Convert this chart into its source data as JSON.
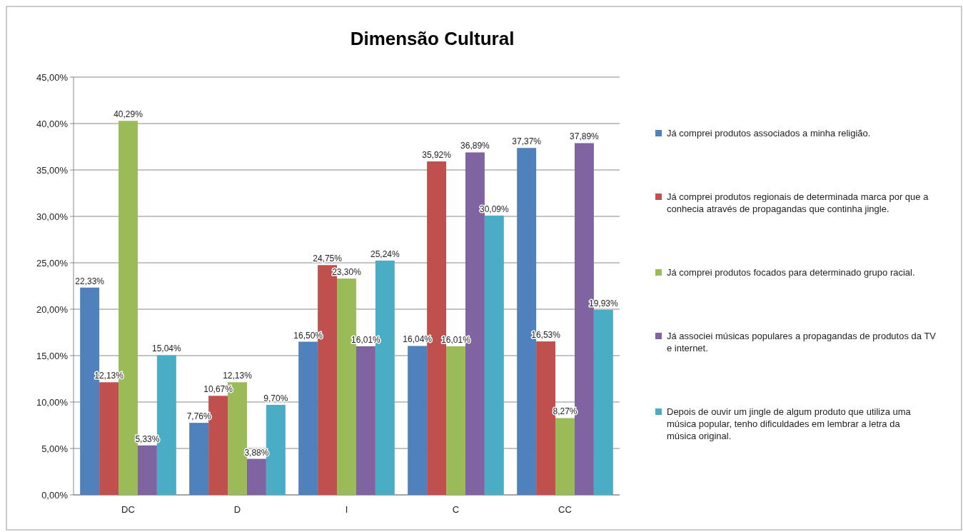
{
  "chart_data": {
    "type": "bar",
    "title": "Dimensão Cultural",
    "categories": [
      "DC",
      "D",
      "I",
      "C",
      "CC"
    ],
    "series": [
      {
        "name": "Já comprei produtos associados a minha religião.",
        "color": "#4f81bd",
        "values": [
          22.33,
          7.76,
          16.5,
          16.04,
          37.37
        ],
        "value_labels": [
          "22,33%",
          "7,76%",
          "16,50%",
          "16,04%",
          "37,37%"
        ]
      },
      {
        "name": "Já comprei produtos regionais de determinada marca por que a conhecia através de propagandas que continha jingle.",
        "color": "#c0504d",
        "values": [
          12.13,
          10.67,
          24.75,
          35.92,
          16.53
        ],
        "value_labels": [
          "12,13%",
          "10,67%",
          "24,75%",
          "35,92%",
          "16,53%"
        ]
      },
      {
        "name": "Já comprei produtos focados para determinado grupo racial.",
        "color": "#9bbb59",
        "values": [
          40.29,
          12.13,
          23.3,
          16.01,
          8.27
        ],
        "value_labels": [
          "40,29%",
          "12,13%",
          "23,30%",
          "16,01%",
          "8,27%"
        ]
      },
      {
        "name": "Já associei músicas populares a propagandas de produtos da TV e internet.",
        "color": "#8064a2",
        "values": [
          5.33,
          3.88,
          16.01,
          36.89,
          37.89
        ],
        "value_labels": [
          "5,33%",
          "3,88%",
          "16,01%",
          "36,89%",
          "37,89%"
        ]
      },
      {
        "name": "Depois de ouvir um jingle de algum produto que utiliza uma música popular, tenho dificuldades em lembrar a letra da música original.",
        "color": "#4bacc6",
        "values": [
          15.04,
          9.7,
          25.24,
          30.09,
          19.93
        ],
        "value_labels": [
          "15,04%",
          "9,70%",
          "25,24%",
          "30,09%",
          "19,93%"
        ]
      }
    ],
    "ylim": [
      0,
      45
    ],
    "yticks": [
      {
        "value": 0,
        "label": "0,00%"
      },
      {
        "value": 5,
        "label": "5,00%"
      },
      {
        "value": 10,
        "label": "10,00%"
      },
      {
        "value": 15,
        "label": "15,00%"
      },
      {
        "value": 20,
        "label": "20,00%"
      },
      {
        "value": 25,
        "label": "25,00%"
      },
      {
        "value": 30,
        "label": "30,00%"
      },
      {
        "value": 35,
        "label": "35,00%"
      },
      {
        "value": 40,
        "label": "40,00%"
      },
      {
        "value": 45,
        "label": "45,00%"
      }
    ],
    "grid": "y",
    "legend": "right"
  }
}
